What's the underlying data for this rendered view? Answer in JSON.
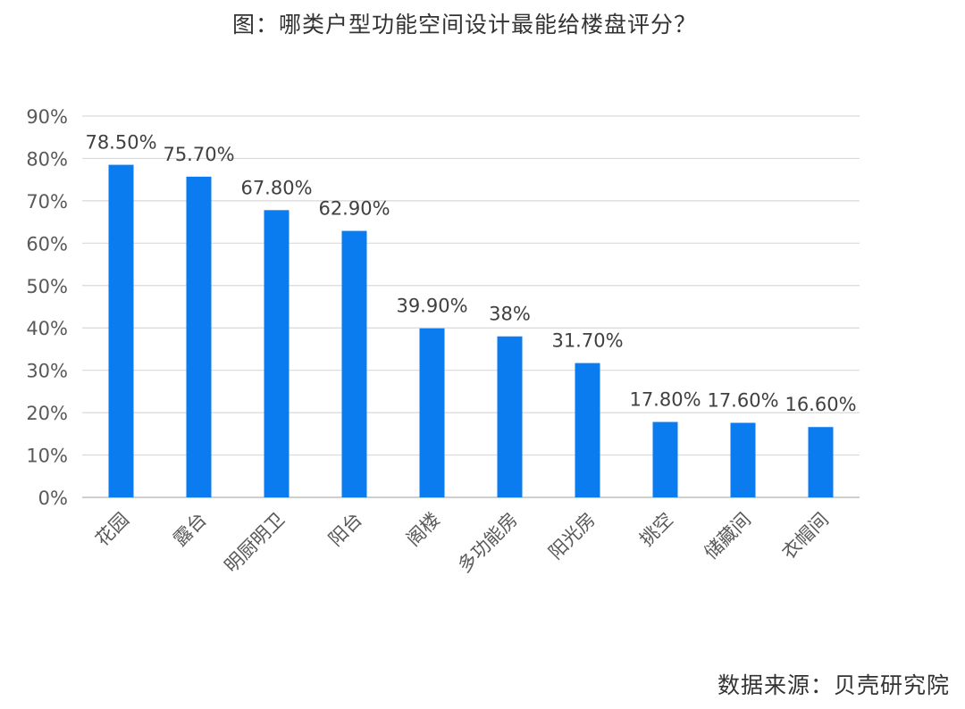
{
  "chart_data": {
    "type": "bar",
    "title": "图：哪类户型功能空间设计最能给楼盘评分？",
    "source": "数据来源：贝壳研究院",
    "categories": [
      "花园",
      "露台",
      "明厨明卫",
      "阳台",
      "阁楼",
      "多功能房",
      "阳光房",
      "挑空",
      "储藏间",
      "衣帽间"
    ],
    "series": [
      {
        "values": [
          78.5,
          75.7,
          67.8,
          62.9,
          39.9,
          38,
          31.7,
          17.8,
          17.6,
          16.6
        ],
        "labels": [
          "78.50%",
          "75.70%",
          "67.80%",
          "62.90%",
          "39.90%",
          "38%",
          "31.70%",
          "17.80%",
          "17.60%",
          "16.60%"
        ]
      }
    ],
    "xlabel": "",
    "ylabel": "",
    "ylim": [
      0,
      90
    ],
    "yticks": [
      "0%",
      "10%",
      "20%",
      "30%",
      "40%",
      "50%",
      "60%",
      "70%",
      "80%",
      "90%"
    ],
    "grid": true,
    "legend": "none",
    "bar_color": "#0a7cf0"
  }
}
